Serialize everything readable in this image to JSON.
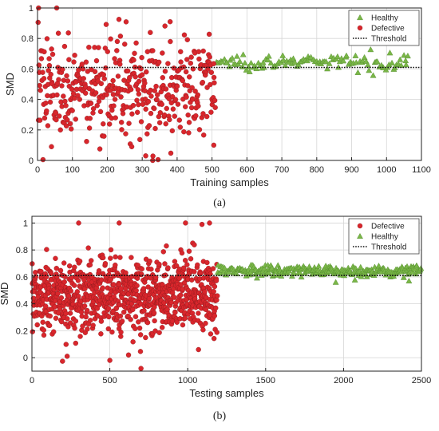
{
  "chart_data": [
    {
      "type": "scatter",
      "caption": "(a)",
      "xlabel": "Training samples",
      "ylabel": "SMD",
      "xlim": [
        0,
        1100
      ],
      "ylim": [
        0,
        1
      ],
      "xticks": [
        0,
        100,
        200,
        300,
        400,
        500,
        600,
        700,
        800,
        900,
        1000,
        1100
      ],
      "yticks": [
        0,
        0.2,
        0.4,
        0.6,
        0.8,
        1
      ],
      "ytick_labels": [
        "0",
        "0.2",
        "0.4",
        "0.6",
        "0.8",
        "1"
      ],
      "threshold": 0.61,
      "grid": true,
      "legend_position": "top-right",
      "legend": [
        "Healthy",
        "Defective",
        "Threshold"
      ],
      "series": [
        {
          "name": "Healthy",
          "marker": "triangle",
          "color": "#7ab648",
          "x_range": [
            510,
            1065
          ],
          "count": 120,
          "center": 0.645,
          "spread": 0.025
        },
        {
          "name": "Defective",
          "marker": "circle",
          "color": "#d9262c",
          "x_range": [
            1,
            510
          ],
          "count": 420,
          "center": 0.46,
          "spread": 0.16
        }
      ],
      "highlight_points": [
        {
          "x": 3,
          "y": 1.0
        },
        {
          "x": 55,
          "y": 1.0
        },
        {
          "x": 380,
          "y": 0.91
        },
        {
          "x": 310,
          "y": 0.03
        },
        {
          "x": 330,
          "y": 0.0
        },
        {
          "x": 505,
          "y": 0.1
        },
        {
          "x": 40,
          "y": 0.09
        },
        {
          "x": 270,
          "y": 0.09
        }
      ]
    },
    {
      "type": "scatter",
      "caption": "(b)",
      "xlabel": "Testing samples",
      "ylabel": "SMD",
      "xlim": [
        0,
        2500
      ],
      "ylim": [
        -0.1,
        1.05
      ],
      "xticks": [
        0,
        500,
        1000,
        1500,
        2000,
        2500
      ],
      "yticks": [
        0,
        0.2,
        0.4,
        0.6,
        0.8,
        1
      ],
      "ytick_labels": [
        "0",
        "0.2",
        "0.4",
        "0.6",
        "0.8",
        "1"
      ],
      "threshold": 0.61,
      "grid": true,
      "legend_position": "top-right",
      "legend": [
        "Defective",
        "Healthy",
        "Threshold"
      ],
      "series": [
        {
          "name": "Defective",
          "marker": "circle",
          "color": "#d9262c",
          "x_range": [
            1,
            1190
          ],
          "count": 900,
          "center": 0.47,
          "spread": 0.14
        },
        {
          "name": "Healthy",
          "marker": "triangle",
          "color": "#7ab648",
          "x_range": [
            1190,
            2500
          ],
          "count": 260,
          "center": 0.645,
          "spread": 0.02
        }
      ],
      "highlight_points": [
        {
          "x": 300,
          "y": 1.0
        },
        {
          "x": 560,
          "y": 1.0
        },
        {
          "x": 700,
          "y": -0.08
        },
        {
          "x": 500,
          "y": -0.02
        },
        {
          "x": 620,
          "y": 0.02
        },
        {
          "x": 1950,
          "y": 0.56
        },
        {
          "x": 2420,
          "y": 0.57
        },
        {
          "x": 1140,
          "y": 1.0
        }
      ]
    }
  ]
}
